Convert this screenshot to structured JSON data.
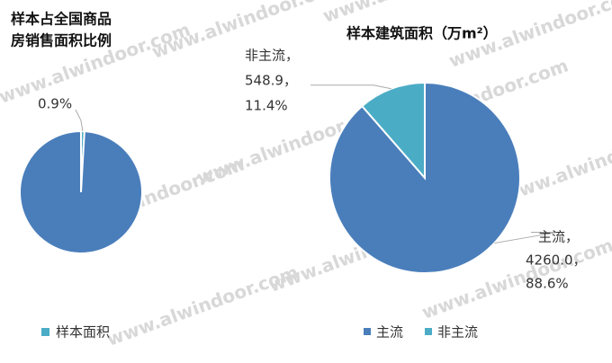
{
  "watermark": "www.alwindoor.com",
  "chart_data": [
    {
      "type": "pie",
      "title_lines": [
        "样本占全国商品",
        "房销售面积比例"
      ],
      "categories": [
        "样本面积",
        null
      ],
      "values": [
        0.9,
        99.1
      ],
      "colors": [
        "#4bacc6",
        "#4a7ebb"
      ],
      "value_labels": [
        "0.9%",
        null
      ]
    },
    {
      "type": "pie",
      "title": "样本建筑面积（万m²）",
      "categories": [
        "主流",
        "非主流"
      ],
      "values": [
        4260.0,
        548.9
      ],
      "colors": [
        "#4a7ebb",
        "#4bacc6"
      ],
      "data_labels": [
        [
          "主流，",
          "4260.0，",
          "88.6%"
        ],
        [
          "非主流，",
          "548.9，",
          "11.4%"
        ]
      ]
    }
  ]
}
